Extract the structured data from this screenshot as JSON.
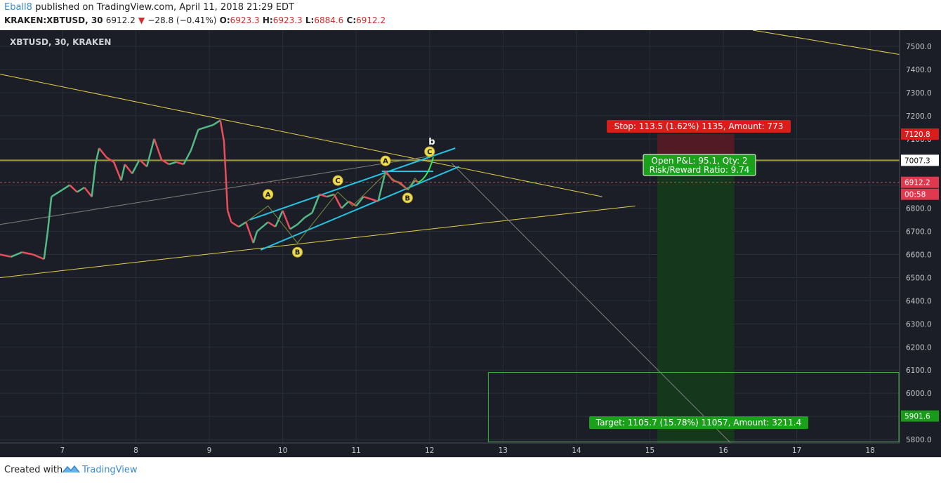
{
  "header": {
    "author": "Eball8",
    "published": " published on TradingView.com, April 11, 2018 21:29 EDT",
    "symbol": "KRAKEN:XBTUSD, 30",
    "last": "6912.2",
    "change": "−28.8 (−0.41%)",
    "o_label": "O:",
    "o_value": "6923.3",
    "h_label": "H:",
    "h_value": "6923.3",
    "l_label": "L:",
    "l_value": "6884.6",
    "c_label": "C:",
    "c_value": "6912.2"
  },
  "footer": {
    "created_with": "Created with",
    "brand": "TradingView"
  },
  "chart_data": {
    "type": "line",
    "title": "XBTUSD, 30, KRAKEN",
    "x_ticks": [
      "7",
      "8",
      "9",
      "10",
      "11",
      "12",
      "13",
      "14",
      "15",
      "16",
      "17",
      "18"
    ],
    "y_ticks": [
      "5800.0",
      "5900.0",
      "6000.0",
      "6100.0",
      "6200.0",
      "6300.0",
      "6400.0",
      "6500.0",
      "6600.0",
      "6700.0",
      "6800.0",
      "6900.0",
      "7000.0",
      "7100.0",
      "7200.0",
      "7300.0",
      "7400.0",
      "7500.0"
    ],
    "ylim": [
      5785,
      7570
    ],
    "xlim": [
      6.15,
      18.4
    ],
    "price": {
      "x": [
        6.15,
        6.3,
        6.45,
        6.6,
        6.75,
        6.8,
        6.85,
        7.0,
        7.1,
        7.2,
        7.3,
        7.4,
        7.45,
        7.5,
        7.6,
        7.7,
        7.8,
        7.85,
        7.95,
        8.05,
        8.15,
        8.25,
        8.35,
        8.45,
        8.55,
        8.65,
        8.75,
        8.85,
        8.95,
        9.05,
        9.15,
        9.2,
        9.25,
        9.3,
        9.4,
        9.5,
        9.6,
        9.65,
        9.8,
        9.9,
        10.0,
        10.1,
        10.2,
        10.3,
        10.4,
        10.5,
        10.6,
        10.7,
        10.8,
        10.9,
        11.0,
        11.1,
        11.2,
        11.3,
        11.4,
        11.5,
        11.6,
        11.7,
        11.8,
        11.85
      ],
      "y": [
        6600,
        6590,
        6610,
        6600,
        6580,
        6700,
        6850,
        6880,
        6900,
        6870,
        6890,
        6850,
        6990,
        7060,
        7020,
        7000,
        6920,
        6990,
        6950,
        7010,
        6980,
        7100,
        7010,
        6990,
        7000,
        6990,
        7050,
        7140,
        7150,
        7160,
        7180,
        7090,
        6790,
        6740,
        6720,
        6740,
        6650,
        6700,
        6740,
        6720,
        6790,
        6710,
        6730,
        6760,
        6780,
        6860,
        6850,
        6860,
        6800,
        6830,
        6810,
        6850,
        6840,
        6830,
        6960,
        6920,
        6910,
        6880,
        6920,
        6912
      ]
    },
    "trend_lines": [
      {
        "color": "#e3d04a",
        "points": [
          [
            6.15,
            7380
          ],
          [
            14.35,
            6850
          ]
        ]
      },
      {
        "color": "#e3d04a",
        "points": [
          [
            6.15,
            6500
          ],
          [
            14.8,
            6810
          ]
        ]
      },
      {
        "color": "#e3d04a",
        "points": [
          [
            16.4,
            7570
          ],
          [
            18.4,
            7465
          ]
        ]
      },
      {
        "color": "#808080",
        "points": [
          [
            6.15,
            6730
          ],
          [
            12.1,
            7030
          ]
        ]
      },
      {
        "color": "#808080",
        "points": [
          [
            12.3,
            6995
          ],
          [
            16.1,
            5785
          ]
        ]
      },
      {
        "color": "#23c4e6",
        "points": [
          [
            9.7,
            6620
          ],
          [
            12.4,
            6980
          ]
        ]
      },
      {
        "color": "#23c4e6",
        "points": [
          [
            9.55,
            6750
          ],
          [
            12.35,
            7060
          ]
        ]
      },
      {
        "color": "#23c4e6",
        "points": [
          [
            11.35,
            6960
          ],
          [
            12.05,
            6960
          ]
        ]
      }
    ],
    "wave_points": [
      [
        9.5,
        6740
      ],
      [
        9.8,
        6810
      ],
      [
        10.2,
        6650
      ],
      [
        10.75,
        6870
      ],
      [
        10.95,
        6810
      ],
      [
        11.4,
        6950
      ],
      [
        11.7,
        6880
      ],
      [
        11.8,
        6930
      ],
      [
        11.85,
        6912
      ]
    ],
    "wave_labels": [
      {
        "text": "A",
        "x": 9.8,
        "y": 6860
      },
      {
        "text": "B",
        "x": 10.2,
        "y": 6610
      },
      {
        "text": "C",
        "x": 10.75,
        "y": 6920
      },
      {
        "text": "A",
        "x": 11.4,
        "y": 7005
      },
      {
        "text": "B",
        "x": 11.7,
        "y": 6845
      },
      {
        "text": "C",
        "x": 12.0,
        "y": 7045
      },
      {
        "text": "b",
        "x": 12.03,
        "y": 7075
      }
    ],
    "levels": {
      "horizontal_resistance": 7007.3,
      "current": 6912.2
    },
    "position": {
      "x_start": 15.1,
      "x_end": 16.15,
      "stop_price": 7120.8,
      "entry_price": 7007.3,
      "target_price": 5901.6,
      "stop_label": "Stop: 113.5 (1.62%) 1135, Amount: 773",
      "target_label": "Target: 1105.7 (15.78%) 11057, Amount: 3211.4",
      "pnl_label_1": "Open P&L: 95.1, Qty: 2",
      "pnl_label_2": "Risk/Reward Ratio: 9.74"
    },
    "target_box": {
      "x_start": 12.8,
      "x_end": 18.4,
      "y_top": 6090,
      "y_bottom": 5790
    },
    "price_labels": [
      {
        "text": "7120.8",
        "value": 7120.8,
        "color": "#d91c1c"
      },
      {
        "text": "7007.3",
        "value": 7007.3,
        "color": "#ffffff"
      },
      {
        "text": "6912.2",
        "value": 6912.2,
        "color": "#e0384f"
      },
      {
        "text": "00:58",
        "value": 6850,
        "color": "#e0384f"
      },
      {
        "text": "5901.6",
        "value": 5901.6,
        "color": "#1a9a1a"
      }
    ]
  }
}
